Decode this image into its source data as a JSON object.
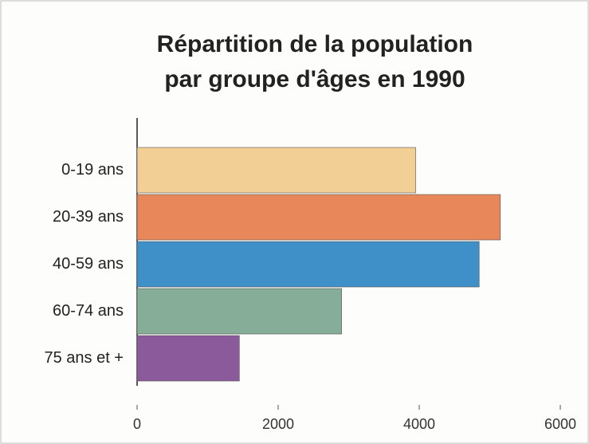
{
  "chart_data": {
    "type": "bar",
    "orientation": "horizontal",
    "title": [
      "Répartition de la population",
      "par groupe d'âges en 1990"
    ],
    "categories": [
      "0-19 ans",
      "20-39 ans",
      "40-59 ans",
      "60-74 ans",
      "75 ans et +"
    ],
    "values": [
      3950,
      5150,
      4850,
      2900,
      1450
    ],
    "colors": [
      "#f2cf94",
      "#e8875a",
      "#3f8fc8",
      "#86ad97",
      "#8b5a9a"
    ],
    "xlim": [
      0,
      6000
    ],
    "xticks": [
      0,
      2000,
      4000,
      6000
    ],
    "grid": false
  }
}
